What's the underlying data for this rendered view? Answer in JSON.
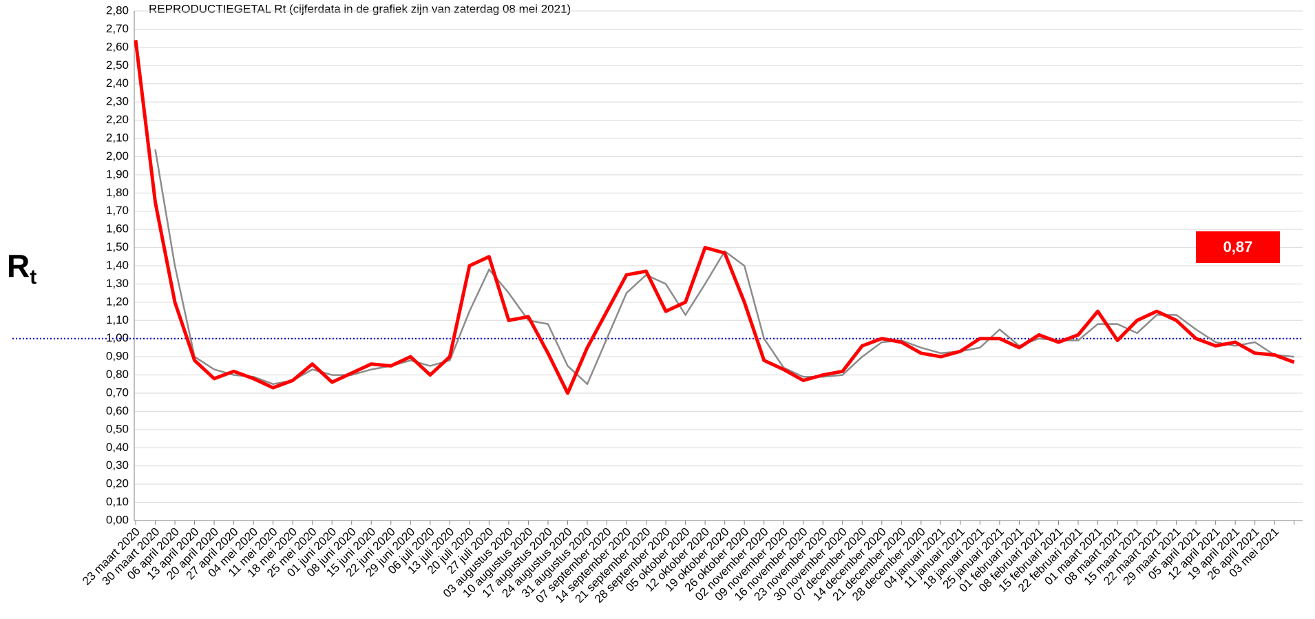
{
  "chart_data": {
    "type": "line",
    "title": "REPRODUCTIEGETAL Rt (cijferdata in de grafiek zijn van zaterdag 08 mei 2021)",
    "ylabel": {
      "base": "R",
      "subscript": "t"
    },
    "categories": [
      "23 maart 2020",
      "30 maart 2020",
      "06 april 2020",
      "13 april 2020",
      "20 april 2020",
      "27 april 2020",
      "04 mei 2020",
      "11 mei 2020",
      "18 mei 2020",
      "25 mei 2020",
      "01 juni 2020",
      "08 juni 2020",
      "15 juni 2020",
      "22 juni 2020",
      "29 juni 2020",
      "06 juli 2020",
      "13 juli 2020",
      "20 juli 2020",
      "27 juli 2020",
      "03 augustus 2020",
      "10 augustus 2020",
      "17 augustus 2020",
      "24 augustus 2020",
      "31 augustus 2020",
      "07 september 2020",
      "14 september 2020",
      "21 september 2020",
      "28 september 2020",
      "05 oktober 2020",
      "12 oktober 2020",
      "19 oktober 2020",
      "26 oktober 2020",
      "02 november 2020",
      "09 november 2020",
      "16 november 2020",
      "23 november 2020",
      "30 november 2020",
      "07 december 2020",
      "14 december 2020",
      "21 december 2020",
      "28 december 2020",
      "04 januari 2021",
      "11 januari 2021",
      "18 januari 2021",
      "25 januari 2021",
      "01 februari 2021",
      "08 februari 2021",
      "15 februari 2021",
      "22 februari 2021",
      "01 maart 2021",
      "08 maart 2021",
      "15 maart 2021",
      "22 maart 2021",
      "29 maart 2021",
      "05 april 2021",
      "12 april 2021",
      "19 april 2021",
      "26 april 2021",
      "03 mei 2021",
      null
    ],
    "series": [
      {
        "color": "#ff0000",
        "values": [
          2.64,
          1.75,
          1.2,
          0.88,
          0.78,
          0.82,
          0.78,
          0.73,
          0.77,
          0.86,
          0.76,
          0.81,
          0.86,
          0.85,
          0.9,
          0.8,
          0.9,
          1.4,
          1.45,
          1.1,
          1.12,
          0.92,
          0.7,
          0.95,
          1.15,
          1.35,
          1.37,
          1.15,
          1.2,
          1.5,
          1.47,
          1.2,
          0.88,
          0.83,
          0.77,
          0.8,
          0.82,
          0.96,
          1.0,
          0.98,
          0.92,
          0.9,
          0.93,
          1.0,
          1.0,
          0.95,
          1.02,
          0.98,
          1.02,
          1.15,
          0.99,
          1.1,
          1.15,
          1.1,
          1.0,
          0.96,
          0.98,
          0.92,
          0.91,
          0.87
        ]
      },
      {
        "color": "#8c8c8c",
        "values": [
          null,
          2.04,
          1.4,
          0.9,
          0.83,
          0.8,
          0.79,
          0.75,
          0.77,
          0.83,
          0.8,
          0.8,
          0.83,
          0.85,
          0.88,
          0.85,
          0.88,
          1.15,
          1.38,
          1.25,
          1.1,
          1.08,
          0.85,
          0.75,
          1.0,
          1.25,
          1.35,
          1.3,
          1.13,
          1.3,
          1.48,
          1.4,
          1.0,
          0.84,
          0.79,
          0.79,
          0.8,
          0.9,
          0.98,
          0.99,
          0.95,
          0.92,
          0.93,
          0.95,
          1.05,
          0.96,
          1.0,
          0.99,
          0.99,
          1.08,
          1.08,
          1.03,
          1.13,
          1.13,
          1.05,
          0.98,
          0.96,
          0.98,
          0.91,
          0.9
        ]
      }
    ],
    "reference_line": 1.0,
    "reference_color": "#0000cc",
    "latest_label": "0,87",
    "latest_label_color": "#ff0000",
    "ylim": [
      0,
      2.8
    ],
    "yticks": [
      {
        "value": 0,
        "label": "0,00"
      },
      {
        "value": 0.1,
        "label": "0,10"
      },
      {
        "value": 0.2,
        "label": "0,20"
      },
      {
        "value": 0.3,
        "label": "0,30"
      },
      {
        "value": 0.4,
        "label": "0,40"
      },
      {
        "value": 0.5,
        "label": "0,50"
      },
      {
        "value": 0.6,
        "label": "0,60"
      },
      {
        "value": 0.7,
        "label": "0,70"
      },
      {
        "value": 0.8,
        "label": "0,80"
      },
      {
        "value": 0.9,
        "label": "0,90"
      },
      {
        "value": 1.0,
        "label": "1,00"
      },
      {
        "value": 1.1,
        "label": "1,10"
      },
      {
        "value": 1.2,
        "label": "1,20"
      },
      {
        "value": 1.3,
        "label": "1,30"
      },
      {
        "value": 1.4,
        "label": "1,40"
      },
      {
        "value": 1.5,
        "label": "1,50"
      },
      {
        "value": 1.6,
        "label": "1,60"
      },
      {
        "value": 1.7,
        "label": "1,70"
      },
      {
        "value": 1.8,
        "label": "1,80"
      },
      {
        "value": 1.9,
        "label": "1,90"
      },
      {
        "value": 2.0,
        "label": "2,00"
      },
      {
        "value": 2.1,
        "label": "2,10"
      },
      {
        "value": 2.2,
        "label": "2,20"
      },
      {
        "value": 2.3,
        "label": "2,30"
      },
      {
        "value": 2.4,
        "label": "2,40"
      },
      {
        "value": 2.5,
        "label": "2,50"
      },
      {
        "value": 2.6,
        "label": "2,60"
      },
      {
        "value": 2.7,
        "label": "2,70"
      },
      {
        "value": 2.8,
        "label": "2,80"
      }
    ],
    "grid": true
  }
}
